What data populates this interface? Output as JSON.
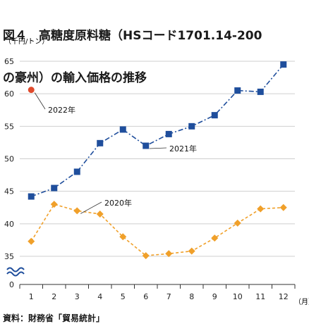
{
  "title": {
    "line1": "図４　高糖度原料糖（HSコード1701.14-200",
    "line2": "の豪州）の輸入価格の推移"
  },
  "source": "資料：財務省「貿易統計」",
  "colors": {
    "series_2021": "#1f4e9c",
    "series_2020": "#f0a02a",
    "series_2022": "#e04a2c",
    "grid": "#cfcfcf",
    "axis": "#333333",
    "break_mark": "#1f4e9c"
  },
  "chart_data": {
    "type": "line",
    "ylabel": "（千円/トン）",
    "xlabel_unit": "（月）",
    "x": [
      1,
      2,
      3,
      4,
      5,
      6,
      7,
      8,
      9,
      10,
      11,
      12
    ],
    "x_tick_labels": [
      "1",
      "2",
      "3",
      "4",
      "5",
      "6",
      "7",
      "8",
      "9",
      "10",
      "11",
      "12"
    ],
    "y_tick_labels": [
      "0",
      "35",
      "40",
      "45",
      "50",
      "55",
      "60",
      "65"
    ],
    "ylim": [
      35,
      65
    ],
    "y_axis_break": true,
    "grid": true,
    "series": [
      {
        "name": "2021年",
        "marker": "square",
        "line_style": "dash-dot",
        "values": [
          44.2,
          45.5,
          48.0,
          52.4,
          54.5,
          52.0,
          53.8,
          55.0,
          56.7,
          60.5,
          60.3,
          64.5
        ]
      },
      {
        "name": "2020年",
        "marker": "diamond",
        "line_style": "dashed",
        "values": [
          37.3,
          43.0,
          42.0,
          41.5,
          38.0,
          35.1,
          35.4,
          35.8,
          37.8,
          40.1,
          42.3,
          42.5
        ]
      },
      {
        "name": "2022年",
        "marker": "circle",
        "line_style": "none",
        "values": [
          60.6,
          null,
          null,
          null,
          null,
          null,
          null,
          null,
          null,
          null,
          null,
          null
        ]
      }
    ]
  }
}
